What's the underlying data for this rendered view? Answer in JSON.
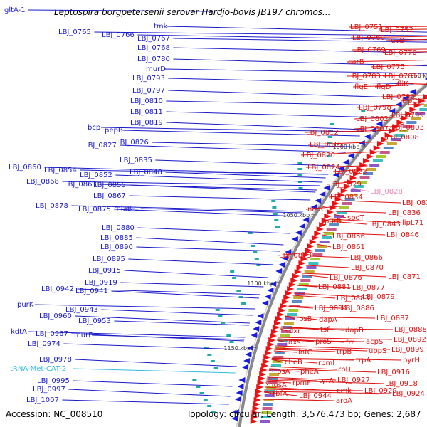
{
  "title": "Leptospira borgpetersenii serovar Hardjo-bovis JB197 chromos...",
  "accession": "Accession: NC_008510",
  "summary": "Topology: circular; Length: 3,576,473 bp; Genes: 2,687",
  "top_feature": "gltA-1",
  "colors": {
    "left_label": "#1a1ac8",
    "right_label": "#dd1111",
    "trna_label": "#33bbdd",
    "highlight_label": "#e88ab8",
    "backbone": "#888888"
  },
  "kbp_ticks": [
    "950 kbp",
    "1000 kbp",
    "1050 kbp",
    "1100 kbp",
    "1150 kbp"
  ],
  "left_labels": [
    "LBJ_0765",
    "LBJ_0766",
    "tmk",
    "LBJ_0767",
    "LBJ_0768",
    "LBJ_0780",
    "murD",
    "LBJ_0793",
    "LBJ_0797",
    "LBJ_0810",
    "LBJ_0811",
    "LBJ_0819",
    "bcp",
    "pepB",
    "LBJ_0827",
    "LBJ_0826",
    "LBJ_0835",
    "LBJ_0860",
    "LBJ_0854",
    "LBJ_0848",
    "LBJ_0852",
    "LBJ_0868",
    "LBJ_0863",
    "LBJ_0855",
    "LBJ_0867",
    "LBJ_0878",
    "LBJ_0875",
    "miaB-1",
    "LBJ_0880",
    "LBJ_0885",
    "LBJ_0890",
    "LBJ_0895",
    "LBJ_0915",
    "LBJ_0919",
    "LBJ_0942",
    "LBJ_0941",
    "purK",
    "LBJ_0943",
    "LBJ_0960",
    "LBJ_0953",
    "kdtA",
    "LBJ_0967",
    "murF",
    "LBJ_0974",
    "LBJ_0978",
    "tRNA-Met-CAT-2",
    "LBJ_0995",
    "LBJ_0997",
    "LBJ_1007"
  ],
  "right_labels": [
    "LBJ_0751",
    "LBJ_0752",
    "LBJ_0760",
    "ruvB",
    "LBJ_0769",
    "LBJ_0770",
    "carB",
    "LBJ_0775",
    "LBJ_0783",
    "LBJ_0781",
    "flgE",
    "flgD",
    "fliK",
    "LBJ_0790",
    "trpC",
    "LBJ_0798",
    "LBJ_0799",
    "LBJ_0802",
    "LBJ_0807",
    "LBJ_0803",
    "LBJ_0808",
    "LBJ_0812",
    "LBJ_0815",
    "LBJ_0820",
    "LBJ_0824",
    "LBJ_0823",
    "LBJ_0829",
    "LBJ_0828",
    "LBJ_0834",
    "LBJ_0831",
    "nadC",
    "spoT",
    "LBJ_0836",
    "purB",
    "LBJ_0843",
    "lipL71",
    "LBJ_0856",
    "LBJ_0846",
    "LBJ_0861",
    "LBJ_0873",
    "LBJ_0866",
    "LBJ_0870",
    "LBJ_0876",
    "LBJ_0871",
    "LBJ_0881",
    "LBJ_0877",
    "LBJ_0883",
    "LBJ_0879",
    "LBJ_0894",
    "LBJ_0886",
    "rpsB",
    "dapA",
    "LBJ_0887",
    "dxr",
    "tsf",
    "dapB",
    "LBJ_0888",
    "dxs",
    "proS",
    "frr",
    "acpS",
    "LBJ_0892",
    "uppS",
    "LBJ_0899",
    "infC",
    "trpB",
    "cheB",
    "rpmI",
    "trpA",
    "pyrH",
    "rplT",
    "LBJ_0916",
    "rpsA",
    "pheA",
    "LBJ_0927",
    "LBJ_0918",
    "rpmF",
    "tyrA",
    "nusA",
    "cmk",
    "LBJ_0929",
    "LBJ_0924",
    "rbfA",
    "LBJ_0944",
    "aroA"
  ]
}
